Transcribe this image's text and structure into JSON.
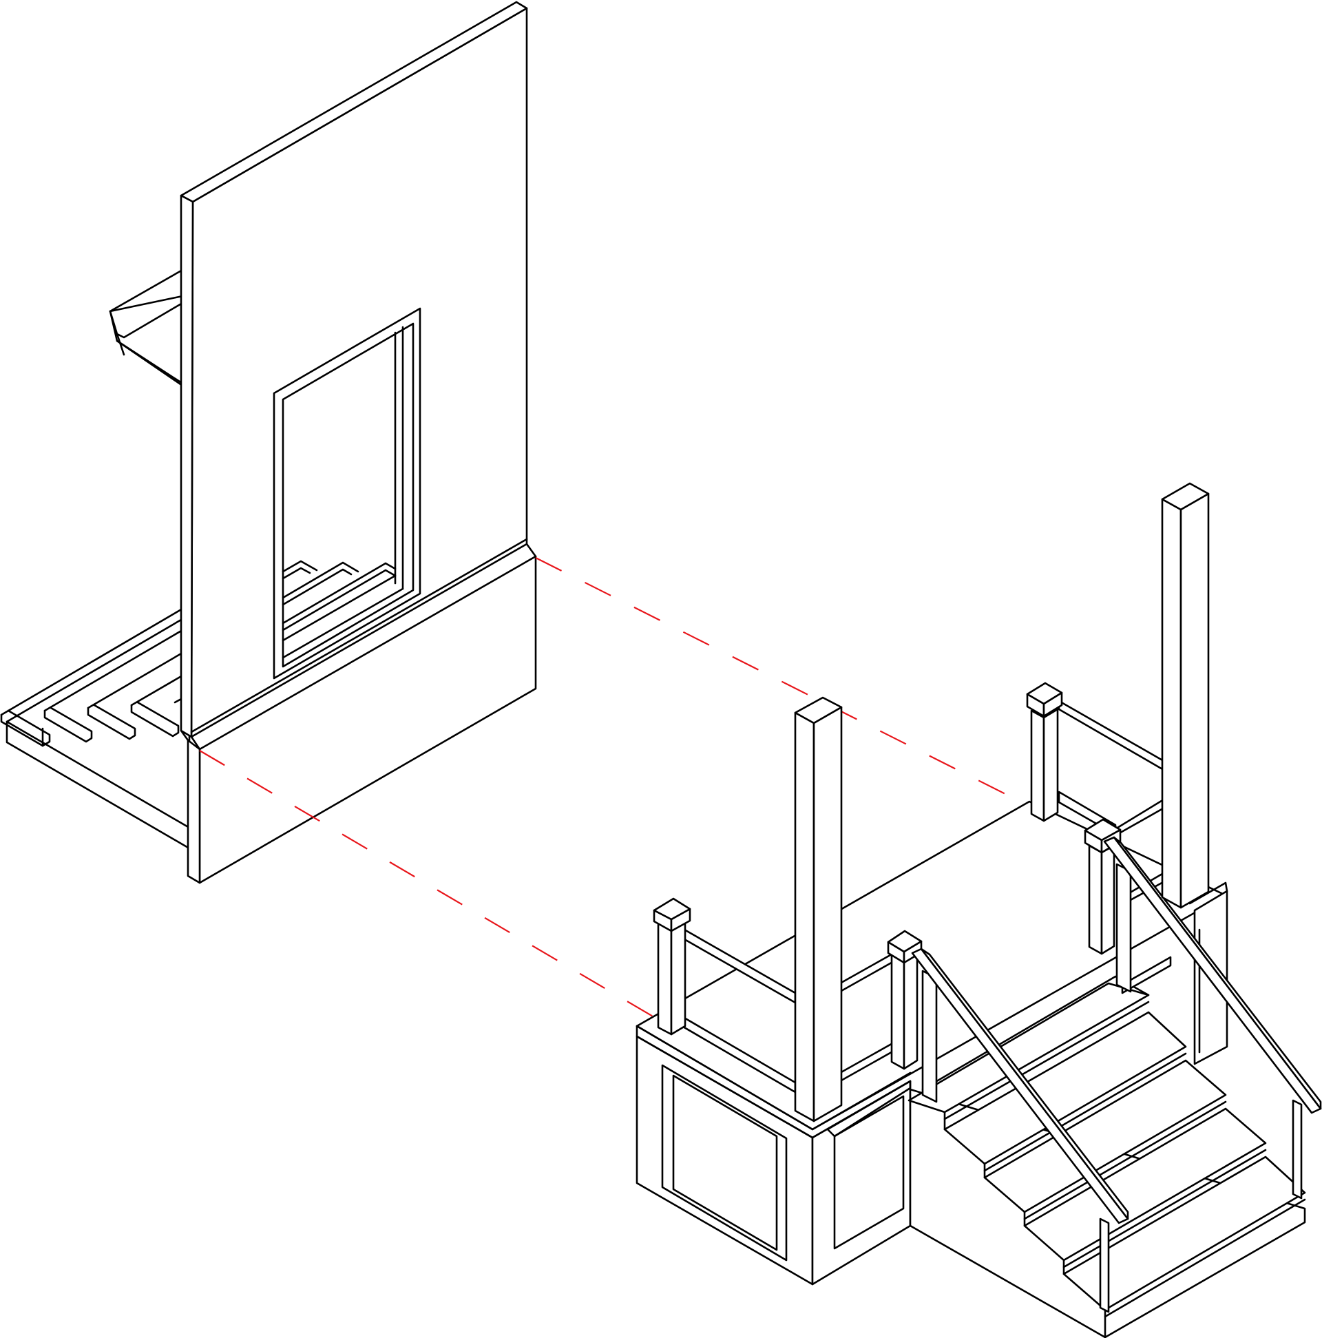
{
  "diagram": {
    "description_visible_text": "",
    "colors": {
      "line": "#000000",
      "guide": "#e8161b",
      "background": "#ffffff"
    },
    "components": [
      {
        "id": "house-wall-section",
        "icon": "wall-elevation-icon"
      },
      {
        "id": "wall-window-opening",
        "icon": "window-icon"
      },
      {
        "id": "rear-stair-flight",
        "icon": "stair-icon"
      },
      {
        "id": "porch-platform",
        "icon": "porch-icon"
      },
      {
        "id": "porch-front-stairs",
        "icon": "stair-icon"
      },
      {
        "id": "alignment-guides",
        "icon": "dashed-line-icon"
      }
    ]
  }
}
